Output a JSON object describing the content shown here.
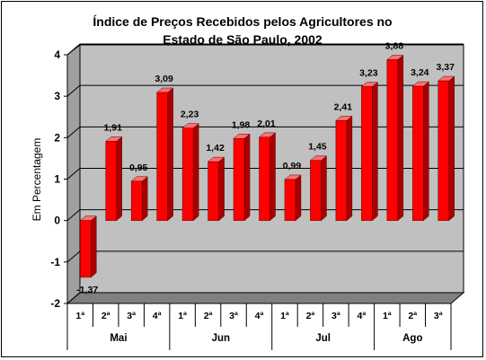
{
  "chart_data": {
    "type": "bar",
    "title_lines": [
      "Índice de Preços Recebidos pelos Agricultores no",
      "Estado de São Paulo, 2002"
    ],
    "ylabel": "Em Percentagem",
    "xlabel": "",
    "ylim": [
      -2,
      4
    ],
    "yticks": [
      "4",
      "3",
      "2",
      "1",
      "0",
      "-1",
      "-2"
    ],
    "grid": true,
    "categories": [
      "1ª",
      "2ª",
      "3ª",
      "4ª",
      "1ª",
      "2ª",
      "3ª",
      "4ª",
      "1ª",
      "2ª",
      "3ª",
      "4ª",
      "1ª",
      "2ª",
      "3ª"
    ],
    "groups": [
      {
        "label": "Mai",
        "count": 4
      },
      {
        "label": "Jun",
        "count": 4
      },
      {
        "label": "Jul",
        "count": 4
      },
      {
        "label": "Ago",
        "count": 3
      }
    ],
    "values": [
      -1.37,
      1.91,
      0.95,
      3.09,
      2.23,
      1.42,
      1.98,
      2.01,
      0.99,
      1.45,
      2.41,
      3.23,
      3.88,
      3.24,
      3.37
    ],
    "value_labels": [
      "-1,37",
      "1,91",
      "0,95",
      "3,09",
      "2,23",
      "1,42",
      "1,98",
      "2,01",
      "0,99",
      "1,45",
      "2,41",
      "3,23",
      "3,88",
      "3,24",
      "3,37"
    ],
    "colors": {
      "bar": "#ff0000",
      "bar_side": "#a80000",
      "bar_top": "#ff7070",
      "wall": "#c0c0c0",
      "floor": "#808080"
    }
  }
}
